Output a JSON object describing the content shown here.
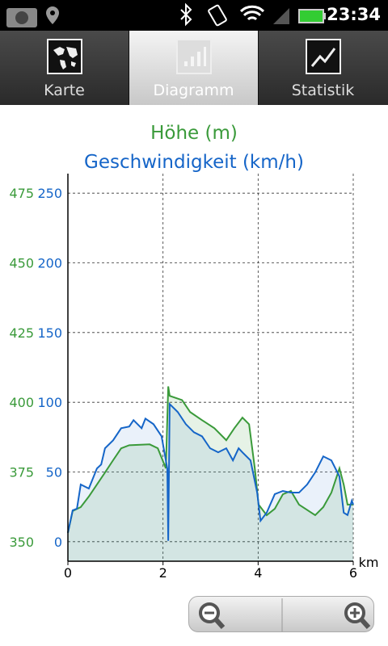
{
  "status_bar": {
    "time": "23:34"
  },
  "tabs": [
    "Karte",
    "Diagramm",
    "Statistik"
  ],
  "chart_data": {
    "type": "line",
    "titles": [
      "Höhe (m)",
      "Geschwindigkeit (km/h)"
    ],
    "xlabel": "km",
    "xlim": [
      0,
      6
    ],
    "xticks": [
      0,
      2,
      4,
      6
    ],
    "ylim": [
      343,
      482
    ],
    "yticks": [
      350,
      375,
      400,
      425,
      450,
      475
    ],
    "y2lim": [
      -14,
      264
    ],
    "y2ticks": [
      0,
      50,
      100,
      150,
      200,
      250
    ],
    "grid": true,
    "series": [
      {
        "name": "Höhe (m)",
        "color": "#3a9a3a",
        "axis": "y",
        "x": [
          0,
          0.1,
          0.27,
          0.44,
          0.61,
          0.78,
          0.95,
          1.12,
          1.29,
          1.72,
          1.89,
          2.06,
          2.11,
          2.14,
          2.4,
          2.57,
          2.82,
          3.08,
          3.33,
          3.5,
          3.67,
          3.81,
          3.93,
          4.01,
          4.18,
          4.35,
          4.52,
          4.69,
          4.86,
          5.2,
          5.37,
          5.54,
          5.71,
          5.8,
          5.88,
          6.0
        ],
        "values": [
          353.2,
          361.0,
          362.4,
          366.2,
          370.5,
          374.8,
          379.2,
          383.5,
          384.6,
          384.9,
          383.5,
          376.3,
          405.7,
          402.3,
          400.8,
          396.5,
          393.6,
          390.7,
          386.4,
          390.7,
          394.5,
          392.1,
          376.3,
          363.3,
          359.5,
          361.8,
          367.0,
          368.2,
          363.3,
          359.5,
          362.4,
          367.6,
          376.3,
          370.5,
          363.3,
          363.3
        ]
      },
      {
        "name": "Geschwindigkeit (km/h)",
        "color": "#1565c8",
        "axis": "y2",
        "x": [
          0,
          0.1,
          0.19,
          0.27,
          0.44,
          0.61,
          0.7,
          0.78,
          0.95,
          1.12,
          1.29,
          1.38,
          1.55,
          1.63,
          1.8,
          1.97,
          2.09,
          2.11,
          2.14,
          2.31,
          2.48,
          2.65,
          2.82,
          2.99,
          3.16,
          3.33,
          3.47,
          3.59,
          3.67,
          3.84,
          3.98,
          4.05,
          4.18,
          4.35,
          4.52,
          4.69,
          4.86,
          5.03,
          5.2,
          5.37,
          5.54,
          5.71,
          5.8,
          5.88,
          5.97,
          6.0
        ],
        "values": [
          6.4,
          22.5,
          23.7,
          41.0,
          38.1,
          52.5,
          55.4,
          67.0,
          72.7,
          81.4,
          82.6,
          87.2,
          81.4,
          88.3,
          84.3,
          75.6,
          52.5,
          0.6,
          98.7,
          93.0,
          84.3,
          78.5,
          75.6,
          67.0,
          64.1,
          67.0,
          58.3,
          67.0,
          64.1,
          58.3,
          35.2,
          15.0,
          20.8,
          34.1,
          36.4,
          35.2,
          35.2,
          41.0,
          49.7,
          61.2,
          58.3,
          46.8,
          20.8,
          19.1,
          29.4,
          26.6
        ]
      }
    ]
  }
}
